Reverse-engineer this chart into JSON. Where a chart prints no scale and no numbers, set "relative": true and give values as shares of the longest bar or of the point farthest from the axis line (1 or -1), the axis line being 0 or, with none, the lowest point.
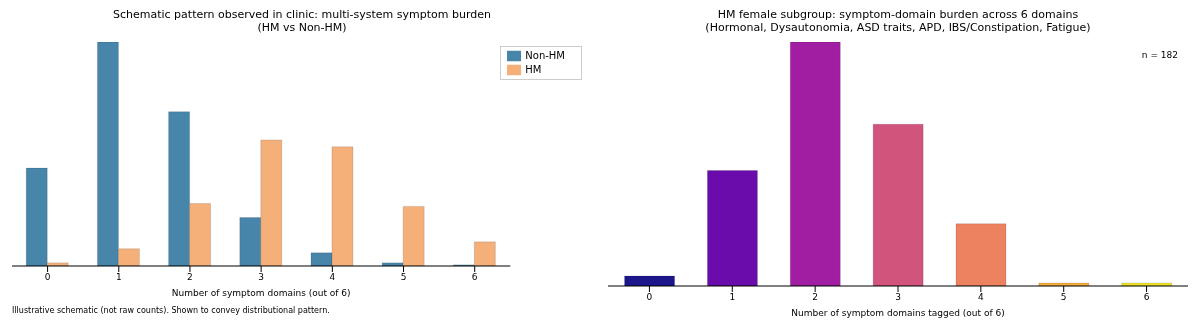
{
  "chart_data": [
    {
      "type": "bar",
      "relative": true,
      "title": "Schematic pattern observed in clinic: multi-system symptom burden\n(HM vs Non-HM)",
      "xlabel": "Number of symptom domains (out of 6)",
      "categories": [
        "0",
        "1",
        "2",
        "3",
        "4",
        "5",
        "6"
      ],
      "legend": "top right",
      "annotations": [
        "Illustrative schematic (not raw counts). Shown to convey distributional pattern."
      ],
      "series": [
        {
          "name": "Non-HM",
          "color": "#4785aa",
          "values": [
            0.437,
            1,
            0.689,
            0.216,
            0.059,
            0.014,
            0.005
          ]
        },
        {
          "name": "HM",
          "color": "#f5b07a",
          "values": [
            0.014,
            0.077,
            0.279,
            0.563,
            0.532,
            0.266,
            0.108
          ]
        }
      ]
    },
    {
      "type": "bar",
      "relative": true,
      "title": "HM female subgroup: symptom-domain burden across 6 domains\n(Hormonal, Dysautonomia, ASD traits, APD, IBS/Constipation, Fatigue)",
      "xlabel": "Number of symptom domains tagged (out of 6)",
      "categories": [
        "0",
        "1",
        "2",
        "3",
        "4",
        "5",
        "6"
      ],
      "annotations": [
        "n = 182"
      ],
      "values": [
        0.041,
        0.473,
        1,
        0.663,
        0.255,
        0.012,
        0.012
      ],
      "colors": [
        "#1b168c",
        "#690cab",
        "#a11ea3",
        "#d0547c",
        "#ed8260",
        "#f8b03a",
        "#efe52a"
      ]
    }
  ]
}
